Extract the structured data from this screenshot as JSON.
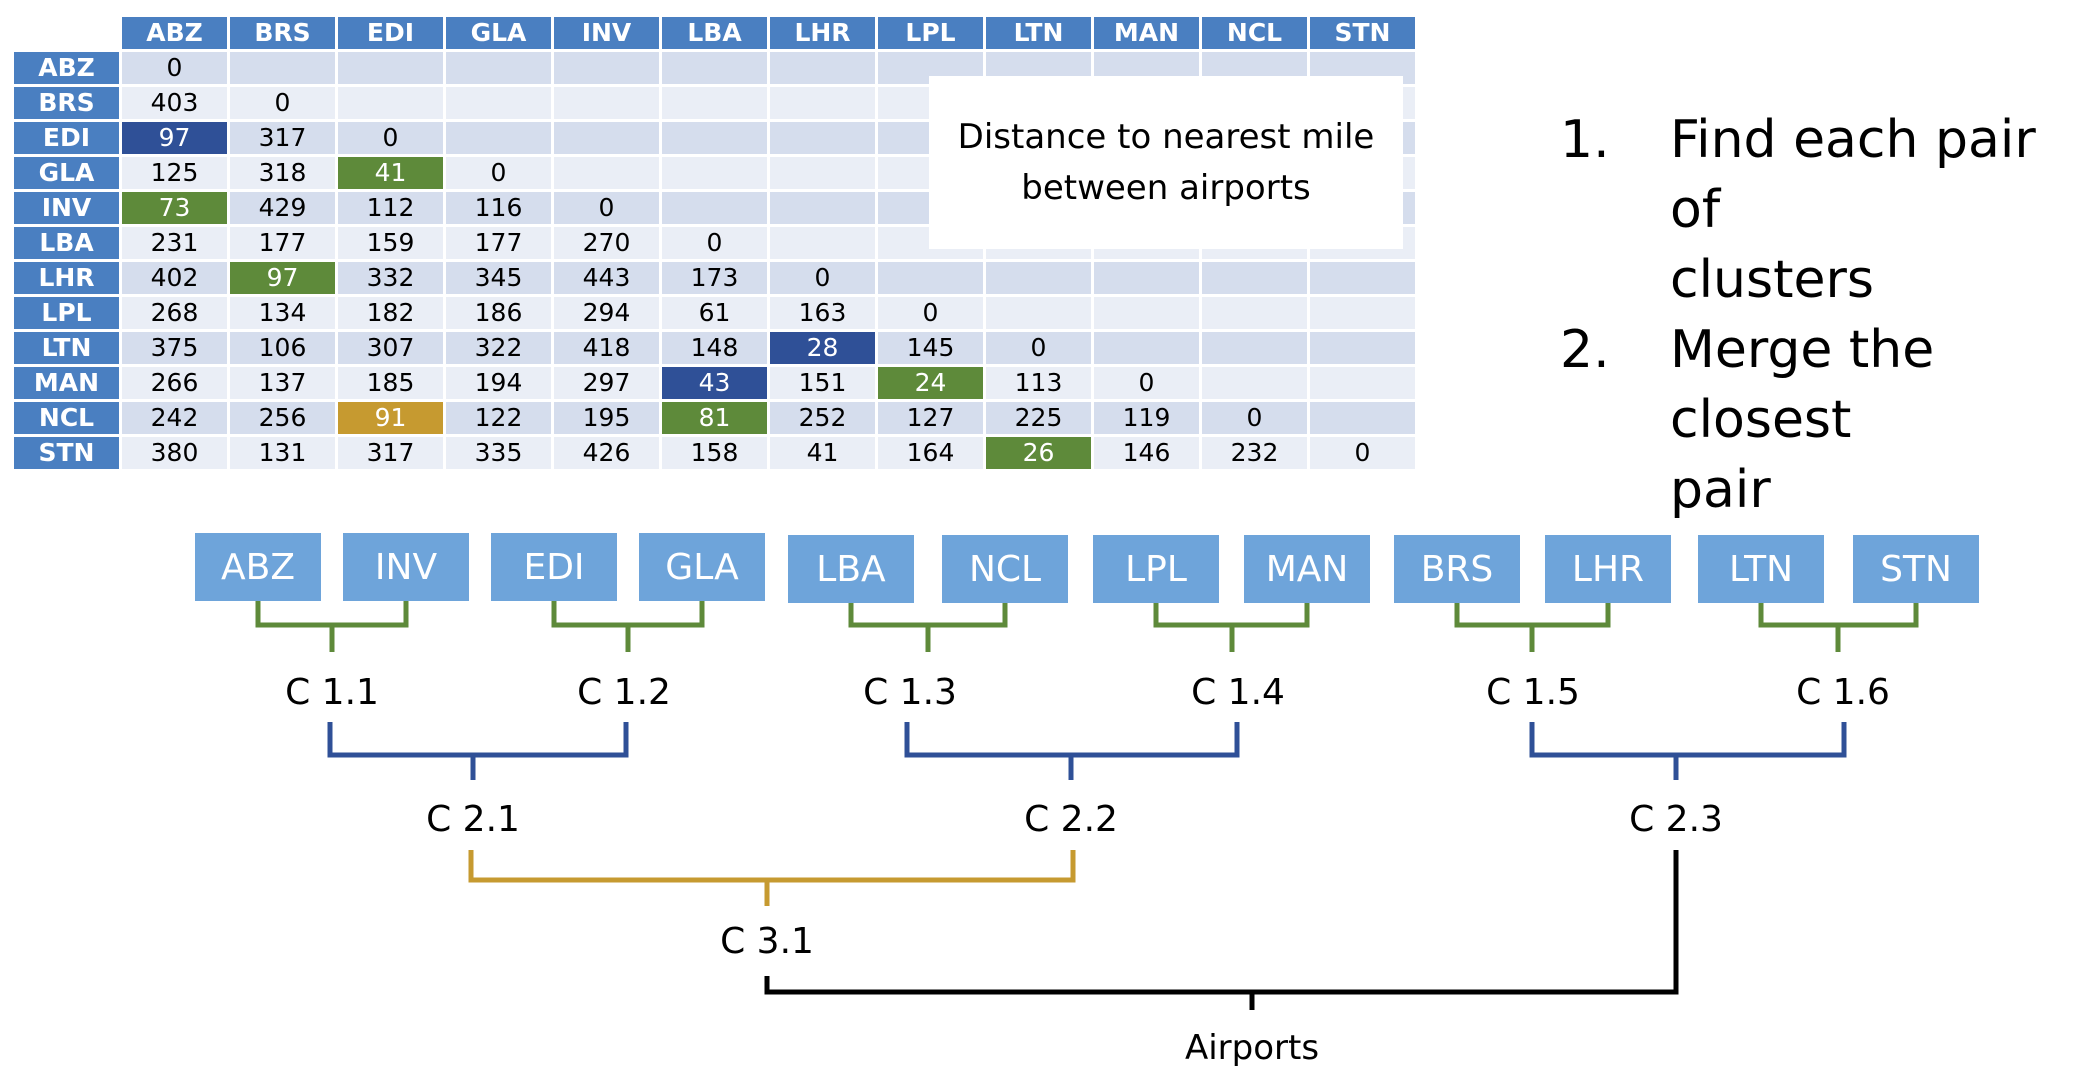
{
  "colors": {
    "header_blue": "#4a7fc1",
    "highlight_blue": "#2f5097",
    "highlight_green": "#5e8a3a",
    "highlight_gold": "#c69a30",
    "leaf_blue": "#6ea4da",
    "line_green": "#5e8a3a",
    "line_blue": "#2f5097",
    "line_gold": "#c69a30",
    "line_black": "#000000"
  },
  "table": {
    "codes": [
      "ABZ",
      "BRS",
      "EDI",
      "GLA",
      "INV",
      "LBA",
      "LHR",
      "LPL",
      "LTN",
      "MAN",
      "NCL",
      "STN"
    ],
    "rows": [
      [
        "0"
      ],
      [
        "403",
        "0"
      ],
      [
        "97",
        "317",
        "0"
      ],
      [
        "125",
        "318",
        "41",
        "0"
      ],
      [
        "73",
        "429",
        "112",
        "116",
        "0"
      ],
      [
        "231",
        "177",
        "159",
        "177",
        "270",
        "0"
      ],
      [
        "402",
        "97",
        "332",
        "345",
        "443",
        "173",
        "0"
      ],
      [
        "268",
        "134",
        "182",
        "186",
        "294",
        "61",
        "163",
        "0"
      ],
      [
        "375",
        "106",
        "307",
        "322",
        "418",
        "148",
        "28",
        "145",
        "0"
      ],
      [
        "266",
        "137",
        "185",
        "194",
        "297",
        "43",
        "151",
        "24",
        "113",
        "0"
      ],
      [
        "242",
        "256",
        "91",
        "122",
        "195",
        "81",
        "252",
        "127",
        "225",
        "119",
        "0"
      ],
      [
        "380",
        "131",
        "317",
        "335",
        "426",
        "158",
        "41",
        "164",
        "26",
        "146",
        "232",
        "0"
      ]
    ],
    "highlights": [
      {
        "row": 2,
        "col": 0,
        "color": "blue"
      },
      {
        "row": 3,
        "col": 2,
        "color": "green"
      },
      {
        "row": 4,
        "col": 0,
        "color": "green"
      },
      {
        "row": 6,
        "col": 1,
        "color": "green"
      },
      {
        "row": 8,
        "col": 6,
        "color": "blue"
      },
      {
        "row": 9,
        "col": 5,
        "color": "blue"
      },
      {
        "row": 9,
        "col": 7,
        "color": "green"
      },
      {
        "row": 10,
        "col": 2,
        "color": "gold"
      },
      {
        "row": 10,
        "col": 5,
        "color": "green"
      },
      {
        "row": 11,
        "col": 8,
        "color": "green"
      }
    ]
  },
  "note": "Distance to nearest mile\nbetween airports",
  "steps": [
    {
      "num": "1.",
      "text": "Find each pair of\nclusters"
    },
    {
      "num": "2.",
      "text": "Merge the closest\npair"
    }
  ],
  "dendrogram": {
    "leaves": [
      "ABZ",
      "INV",
      "EDI",
      "GLA",
      "LBA",
      "NCL",
      "LPL",
      "MAN",
      "BRS",
      "LHR",
      "LTN",
      "STN"
    ],
    "level1": [
      "C 1.1",
      "C 1.2",
      "C 1.3",
      "C 1.4",
      "C 1.5",
      "C 1.6"
    ],
    "level2": [
      "C 2.1",
      "C 2.2",
      "C 2.3"
    ],
    "level3": [
      "C 3.1"
    ],
    "root": "Airports"
  }
}
